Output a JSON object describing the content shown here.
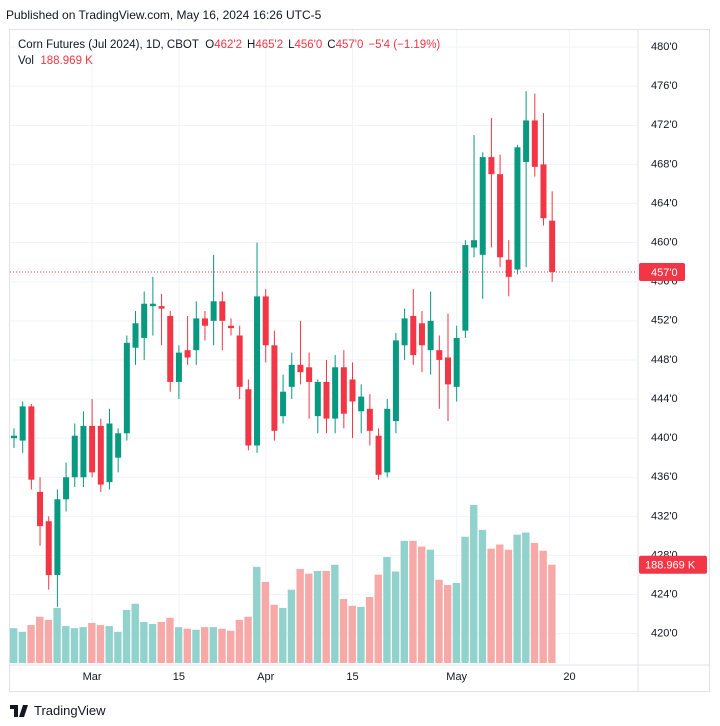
{
  "header": {
    "published": "Published on TradingView.com, May 16, 2024 16:26 UTC-5",
    "footer": "TradingView"
  },
  "chart_data": {
    "type": "candlestick",
    "title": "Corn Futures (Jul 2024), 1D, CBOT",
    "ohlc_legend": [
      {
        "label": "O",
        "value": "462'2"
      },
      {
        "label": "H",
        "value": "465'2"
      },
      {
        "label": "L",
        "value": "456'0"
      },
      {
        "label": "C",
        "value": "457'0"
      }
    ],
    "change": "−5'4 (−1.19%)",
    "volume_title": "Vol",
    "volume_value": "188.969 K",
    "last_price_label": "457'0",
    "last_volume_label": "188.969 K",
    "up_color": "#089981",
    "down_color": "#f23645",
    "volume_up_color": "#92d2cc",
    "volume_down_color": "#f7a9a7",
    "categories": [
      null,
      null,
      null,
      null,
      null,
      null,
      null,
      null,
      null,
      "Mar",
      null,
      null,
      null,
      null,
      null,
      null,
      null,
      null,
      null,
      "15",
      null,
      null,
      null,
      null,
      null,
      null,
      null,
      null,
      null,
      "Apr",
      null,
      null,
      null,
      null,
      null,
      null,
      null,
      null,
      null,
      "15",
      null,
      null,
      null,
      null,
      null,
      null,
      null,
      null,
      null,
      null,
      null,
      "May",
      null,
      null,
      null,
      null,
      null,
      null,
      null,
      null,
      null,
      null,
      null,
      null,
      "20"
    ],
    "open": [
      440,
      439.75,
      443.25,
      434.5,
      431.5,
      426,
      433.75,
      436,
      436,
      441.25,
      441.25,
      435.5,
      438,
      440.5,
      449.25,
      450.25,
      453.5,
      453.5,
      452.5,
      445.75,
      449,
      449,
      452.25,
      452,
      454,
      451.5,
      450.5,
      445,
      439.25,
      454.5,
      449.5,
      442.25,
      445.25,
      447.5,
      447.25,
      442.25,
      445.75,
      442,
      447.25,
      446,
      442.75,
      443,
      440.25,
      436.5,
      441.75,
      449.5,
      452.5,
      451.75,
      449,
      449,
      448.25,
      445.25,
      451,
      459.5,
      458.75,
      468.75,
      467,
      458.25,
      457.25,
      468.25,
      472.5,
      468,
      462.25,
      null,
      null
    ],
    "high": [
      441,
      443.75,
      443.5,
      436,
      432,
      434.75,
      437.5,
      441.5,
      442.75,
      444,
      442,
      443,
      441,
      450.5,
      453,
      455,
      456.5,
      454.75,
      453,
      449.5,
      452.5,
      454,
      453,
      458.75,
      455,
      452.25,
      451.5,
      446,
      460,
      455.25,
      451,
      446.5,
      448.75,
      452,
      448.75,
      446,
      448,
      448.5,
      449,
      447.75,
      445.5,
      444.5,
      441,
      444,
      450.75,
      453.25,
      455.25,
      453,
      455,
      450.5,
      452.75,
      451.5,
      460.25,
      471,
      469.25,
      472.75,
      469,
      460.25,
      470,
      475.5,
      475.25,
      473.25,
      465.25,
      null,
      null
    ],
    "low": [
      439,
      438.5,
      434.75,
      429,
      424.5,
      422.75,
      432.5,
      435,
      435,
      436,
      434.5,
      434.75,
      436.5,
      439.75,
      447.5,
      448,
      450.5,
      449.5,
      444.75,
      444,
      447.5,
      447.5,
      450,
      449.5,
      449,
      450.5,
      444,
      438.75,
      438.5,
      447.75,
      439.75,
      441.5,
      444,
      445.5,
      442,
      440.5,
      440.5,
      440.5,
      441,
      440,
      440.5,
      439.25,
      435.75,
      436,
      440.5,
      448,
      447.5,
      446.75,
      446.5,
      443,
      441.75,
      443.75,
      450.25,
      458.5,
      454.25,
      459.5,
      457.5,
      454.5,
      456.75,
      457.5,
      466.75,
      461.75,
      456,
      null,
      null
    ],
    "close": [
      440.25,
      443.25,
      435.75,
      431,
      426,
      433.75,
      436,
      440.25,
      441.25,
      436.5,
      435.25,
      441.5,
      440.5,
      449.75,
      451.75,
      453.75,
      453.75,
      453.25,
      445.75,
      448.75,
      448.25,
      452.25,
      451.5,
      454,
      452,
      451.25,
      445.25,
      439.25,
      454.5,
      449.5,
      440.75,
      444.75,
      447.5,
      446.75,
      445.75,
      445.75,
      442,
      447.25,
      442.5,
      443.75,
      444.25,
      440.75,
      436.25,
      443,
      450,
      452.25,
      448.5,
      449.5,
      452,
      448,
      445.5,
      450.25,
      459.75,
      460.25,
      468.75,
      467,
      458.5,
      456.5,
      469.75,
      472.5,
      467.75,
      462.5,
      457,
      null,
      null
    ],
    "volume": [
      67,
      60,
      73,
      89,
      83,
      106,
      71,
      67,
      69,
      77,
      73,
      71,
      60,
      102,
      114,
      79,
      75,
      79,
      87,
      69,
      66,
      64,
      69,
      69,
      66,
      62,
      83,
      89,
      185,
      156,
      112,
      106,
      141,
      181,
      172,
      177,
      177,
      189,
      123,
      110,
      108,
      127,
      170,
      204,
      176,
      235,
      235,
      224,
      218,
      160,
      150,
      154,
      243,
      304,
      256,
      220,
      228,
      218,
      247,
      251,
      231,
      216,
      188.969,
      null,
      null
    ],
    "ylim": [
      417,
      481.75
    ],
    "yticks": [
      {
        "value": 420,
        "label": "420'0"
      },
      {
        "value": 424,
        "label": "424'0"
      },
      {
        "value": 428,
        "label": "428'0"
      },
      {
        "value": 432,
        "label": "432'0"
      },
      {
        "value": 436,
        "label": "436'0"
      },
      {
        "value": 440,
        "label": "440'0"
      },
      {
        "value": 444,
        "label": "444'0"
      },
      {
        "value": 448,
        "label": "448'0"
      },
      {
        "value": 452,
        "label": "452'0"
      },
      {
        "value": 456,
        "label": "456'0"
      },
      {
        "value": 460,
        "label": "460'0"
      },
      {
        "value": 464,
        "label": "464'0"
      },
      {
        "value": 468,
        "label": "468'0"
      },
      {
        "value": 472,
        "label": "472'0"
      },
      {
        "value": 476,
        "label": "476'0"
      },
      {
        "value": 480,
        "label": "480'0"
      }
    ],
    "grid": true
  }
}
